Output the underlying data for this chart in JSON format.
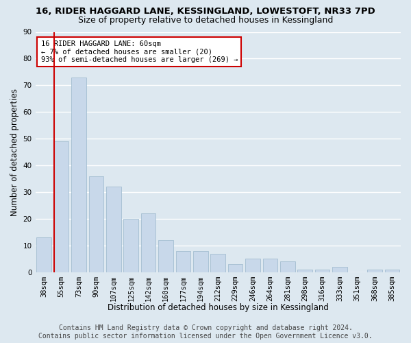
{
  "title1": "16, RIDER HAGGARD LANE, KESSINGLAND, LOWESTOFT, NR33 7PD",
  "title2": "Size of property relative to detached houses in Kessingland",
  "xlabel": "Distribution of detached houses by size in Kessingland",
  "ylabel": "Number of detached properties",
  "categories": [
    "38sqm",
    "55sqm",
    "73sqm",
    "90sqm",
    "107sqm",
    "125sqm",
    "142sqm",
    "160sqm",
    "177sqm",
    "194sqm",
    "212sqm",
    "229sqm",
    "246sqm",
    "264sqm",
    "281sqm",
    "298sqm",
    "316sqm",
    "333sqm",
    "351sqm",
    "368sqm",
    "385sqm"
  ],
  "values": [
    13,
    49,
    73,
    36,
    32,
    20,
    22,
    12,
    8,
    8,
    7,
    3,
    5,
    5,
    4,
    1,
    1,
    2,
    0,
    1,
    1
  ],
  "bar_color": "#c8d8ea",
  "bar_edge_color": "#9ab8cc",
  "subject_line_color": "#cc0000",
  "subject_line_index": 1,
  "ylim": [
    0,
    90
  ],
  "yticks": [
    0,
    10,
    20,
    30,
    40,
    50,
    60,
    70,
    80,
    90
  ],
  "annotation_text": "16 RIDER HAGGARD LANE: 60sqm\n← 7% of detached houses are smaller (20)\n93% of semi-detached houses are larger (269) →",
  "annotation_box_color": "#ffffff",
  "annotation_box_edgecolor": "#cc0000",
  "footer1": "Contains HM Land Registry data © Crown copyright and database right 2024.",
  "footer2": "Contains public sector information licensed under the Open Government Licence v3.0.",
  "background_color": "#dde8f0",
  "grid_color": "#ffffff",
  "title1_fontsize": 9.5,
  "title2_fontsize": 9,
  "axis_label_fontsize": 8.5,
  "tick_fontsize": 7.5,
  "footer_fontsize": 7
}
